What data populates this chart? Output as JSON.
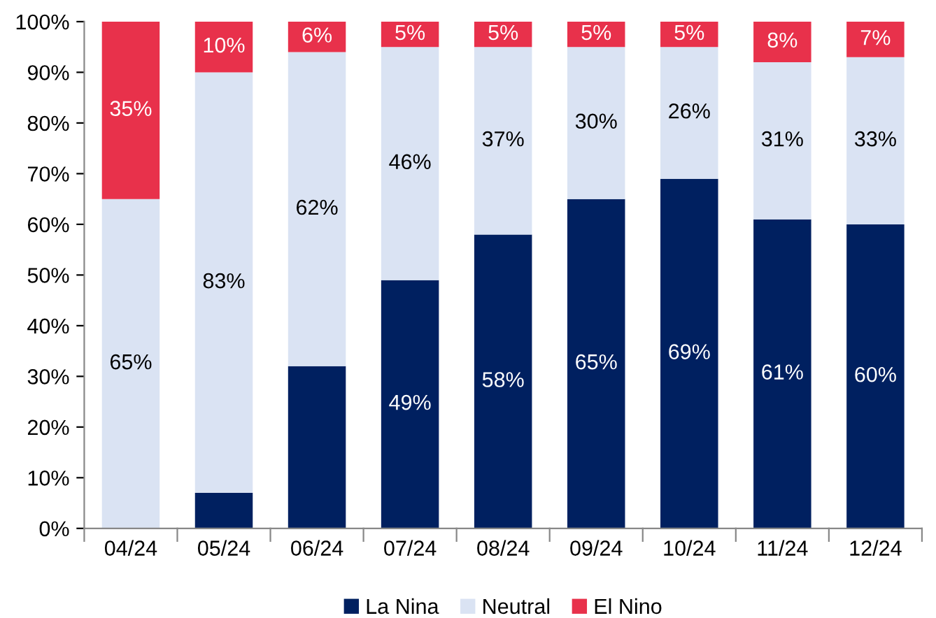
{
  "chart_data": {
    "type": "bar",
    "stacked": true,
    "categories": [
      "04/24",
      "05/24",
      "06/24",
      "07/24",
      "08/24",
      "09/24",
      "10/24",
      "11/24",
      "12/24"
    ],
    "series": [
      {
        "name": "La Nina",
        "color": "#002060",
        "values": [
          0,
          7,
          32,
          49,
          58,
          65,
          69,
          61,
          60
        ],
        "value_labels": [
          null,
          null,
          null,
          "49%",
          "58%",
          "65%",
          "69%",
          "61%",
          "60%"
        ]
      },
      {
        "name": "Neutral",
        "color": "#dae3f3",
        "values": [
          65,
          83,
          62,
          46,
          37,
          30,
          26,
          31,
          33
        ],
        "value_labels": [
          "65%",
          "83%",
          "62%",
          "46%",
          "37%",
          "30%",
          "26%",
          "31%",
          "33%"
        ]
      },
      {
        "name": "El Nino",
        "color": "#e8314b",
        "values": [
          35,
          10,
          6,
          5,
          5,
          5,
          5,
          8,
          7
        ],
        "value_labels": [
          "35%",
          "10%",
          "6%",
          "5%",
          "5%",
          "5%",
          "5%",
          "8%",
          "7%"
        ]
      }
    ],
    "ylim": [
      0,
      100
    ],
    "yticks": [
      {
        "value": 0,
        "label": "0%"
      },
      {
        "value": 10,
        "label": "10%"
      },
      {
        "value": 20,
        "label": "20%"
      },
      {
        "value": 30,
        "label": "30%"
      },
      {
        "value": 40,
        "label": "40%"
      },
      {
        "value": 50,
        "label": "50%"
      },
      {
        "value": 60,
        "label": "60%"
      },
      {
        "value": 70,
        "label": "70%"
      },
      {
        "value": 80,
        "label": "80%"
      },
      {
        "value": 90,
        "label": "90%"
      },
      {
        "value": 100,
        "label": "100%"
      }
    ],
    "grid": false,
    "legend": "bottom"
  }
}
